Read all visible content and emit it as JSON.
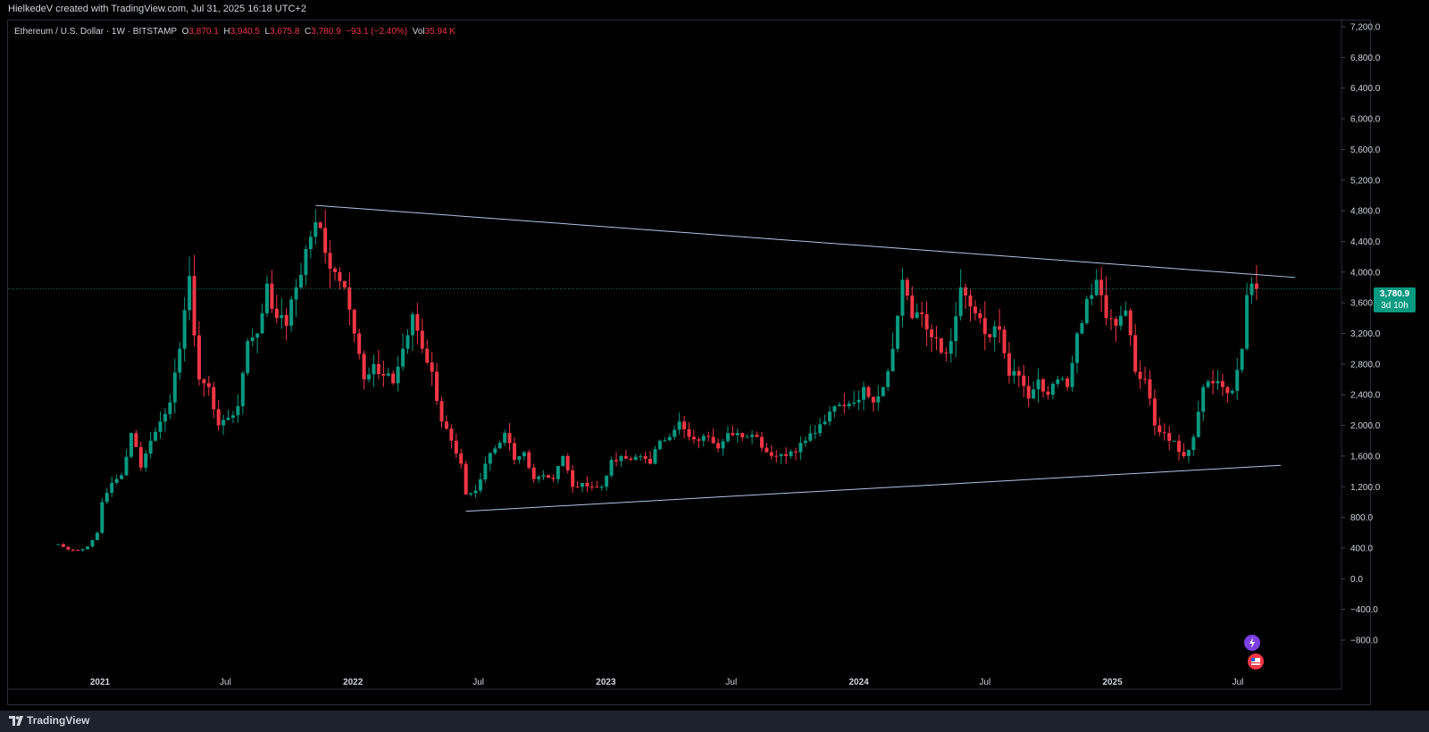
{
  "header": {
    "attribution": "HielkedeV created with TradingView.com, Jul 31, 2025 16:18 UTC+2"
  },
  "legend": {
    "symbol": "Ethereum / U.S. Dollar · 1W · BITSTAMP",
    "o_label": "O",
    "o_value": "3,870.1",
    "h_label": "H",
    "h_value": "3,940.5",
    "l_label": "L",
    "l_value": "3,675.8",
    "c_label": "C",
    "c_value": "3,780.9",
    "change": "−93.1 (−2.40%)",
    "vol_label": "Vol",
    "vol_value": "35.94 K"
  },
  "price_tag": {
    "price": "3,780.9",
    "countdown": "3d 10h"
  },
  "footer": {
    "brand": "TradingView"
  },
  "colors": {
    "up": "#089981",
    "down": "#f23645",
    "trendline": "#b3c6e6",
    "background": "#000000",
    "axis_text": "#d1d4dc"
  },
  "chart_data": {
    "type": "candlestick",
    "symbol": "ETHUSD",
    "timeframe": "1W",
    "y_axis": {
      "range": [
        -1000,
        7300
      ],
      "ticks": [
        "7,200.0",
        "6,800.0",
        "6,400.0",
        "6,000.0",
        "5,600.0",
        "5,200.0",
        "4,800.0",
        "4,400.0",
        "4,000.0",
        "3,600.0",
        "3,200.0",
        "2,800.0",
        "2,400.0",
        "2,000.0",
        "1,600.0",
        "1,200.0",
        "800.0",
        "400.0",
        "0.0",
        "−400.0",
        "−800.0"
      ]
    },
    "x_axis": {
      "ticks": [
        {
          "label": "2021",
          "date": "2021-01-01"
        },
        {
          "label": "Jul",
          "date": "2021-07-01"
        },
        {
          "label": "2022",
          "date": "2022-01-01"
        },
        {
          "label": "Jul",
          "date": "2022-07-01"
        },
        {
          "label": "2023",
          "date": "2023-01-01"
        },
        {
          "label": "Jul",
          "date": "2023-07-01"
        },
        {
          "label": "2024",
          "date": "2024-01-01"
        },
        {
          "label": "Jul",
          "date": "2024-07-01"
        },
        {
          "label": "2025",
          "date": "2025-01-01"
        },
        {
          "label": "Jul",
          "date": "2025-07-01"
        }
      ]
    },
    "last_price": 3780.9,
    "trendlines": [
      {
        "from": {
          "date": "2021-11-08",
          "value": 4870
        },
        "to": {
          "date": "2025-09-22",
          "value": 3930
        }
      },
      {
        "from": {
          "date": "2022-06-13",
          "value": 880
        },
        "to": {
          "date": "2025-09-01",
          "value": 1480
        }
      }
    ],
    "closes": [
      {
        "date": "2020-11-02",
        "value": 450
      },
      {
        "date": "2020-11-16",
        "value": 380
      },
      {
        "date": "2020-11-30",
        "value": 370
      },
      {
        "date": "2020-12-14",
        "value": 420
      },
      {
        "date": "2020-12-28",
        "value": 600
      },
      {
        "date": "2021-01-04",
        "value": 1000
      },
      {
        "date": "2021-01-18",
        "value": 1250
      },
      {
        "date": "2021-02-01",
        "value": 1350
      },
      {
        "date": "2021-02-15",
        "value": 1900
      },
      {
        "date": "2021-03-01",
        "value": 1450
      },
      {
        "date": "2021-03-15",
        "value": 1800
      },
      {
        "date": "2021-03-29",
        "value": 2050
      },
      {
        "date": "2021-04-12",
        "value": 2300
      },
      {
        "date": "2021-04-26",
        "value": 3000
      },
      {
        "date": "2021-05-10",
        "value": 3950
      },
      {
        "date": "2021-05-24",
        "value": 2600
      },
      {
        "date": "2021-06-07",
        "value": 2500
      },
      {
        "date": "2021-06-21",
        "value": 2000
      },
      {
        "date": "2021-07-05",
        "value": 2100
      },
      {
        "date": "2021-07-19",
        "value": 2250
      },
      {
        "date": "2021-08-02",
        "value": 3100
      },
      {
        "date": "2021-08-16",
        "value": 3200
      },
      {
        "date": "2021-08-30",
        "value": 3850
      },
      {
        "date": "2021-09-13",
        "value": 3400
      },
      {
        "date": "2021-09-27",
        "value": 3300
      },
      {
        "date": "2021-10-11",
        "value": 3800
      },
      {
        "date": "2021-10-25",
        "value": 4300
      },
      {
        "date": "2021-11-08",
        "value": 4650
      },
      {
        "date": "2021-11-22",
        "value": 4250
      },
      {
        "date": "2021-12-06",
        "value": 4000
      },
      {
        "date": "2021-12-20",
        "value": 3800
      },
      {
        "date": "2022-01-03",
        "value": 3200
      },
      {
        "date": "2022-01-17",
        "value": 2600
      },
      {
        "date": "2022-01-31",
        "value": 2800
      },
      {
        "date": "2022-02-14",
        "value": 2650
      },
      {
        "date": "2022-02-28",
        "value": 2550
      },
      {
        "date": "2022-03-14",
        "value": 3000
      },
      {
        "date": "2022-03-28",
        "value": 3450
      },
      {
        "date": "2022-04-11",
        "value": 3000
      },
      {
        "date": "2022-04-25",
        "value": 2700
      },
      {
        "date": "2022-05-09",
        "value": 2050
      },
      {
        "date": "2022-05-23",
        "value": 1800
      },
      {
        "date": "2022-06-06",
        "value": 1500
      },
      {
        "date": "2022-06-13",
        "value": 1100
      },
      {
        "date": "2022-06-27",
        "value": 1150
      },
      {
        "date": "2022-07-11",
        "value": 1500
      },
      {
        "date": "2022-07-25",
        "value": 1700
      },
      {
        "date": "2022-08-08",
        "value": 1900
      },
      {
        "date": "2022-08-22",
        "value": 1550
      },
      {
        "date": "2022-09-05",
        "value": 1650
      },
      {
        "date": "2022-09-19",
        "value": 1300
      },
      {
        "date": "2022-10-03",
        "value": 1350
      },
      {
        "date": "2022-10-17",
        "value": 1300
      },
      {
        "date": "2022-10-31",
        "value": 1600
      },
      {
        "date": "2022-11-14",
        "value": 1200
      },
      {
        "date": "2022-11-28",
        "value": 1250
      },
      {
        "date": "2022-12-12",
        "value": 1200
      },
      {
        "date": "2022-12-26",
        "value": 1200
      },
      {
        "date": "2023-01-09",
        "value": 1550
      },
      {
        "date": "2023-01-23",
        "value": 1600
      },
      {
        "date": "2023-02-06",
        "value": 1550
      },
      {
        "date": "2023-02-20",
        "value": 1600
      },
      {
        "date": "2023-03-06",
        "value": 1500
      },
      {
        "date": "2023-03-20",
        "value": 1800
      },
      {
        "date": "2023-04-03",
        "value": 1850
      },
      {
        "date": "2023-04-17",
        "value": 2050
      },
      {
        "date": "2023-05-01",
        "value": 1850
      },
      {
        "date": "2023-05-15",
        "value": 1800
      },
      {
        "date": "2023-05-29",
        "value": 1850
      },
      {
        "date": "2023-06-12",
        "value": 1700
      },
      {
        "date": "2023-06-26",
        "value": 1900
      },
      {
        "date": "2023-07-10",
        "value": 1900
      },
      {
        "date": "2023-07-24",
        "value": 1850
      },
      {
        "date": "2023-08-07",
        "value": 1850
      },
      {
        "date": "2023-08-21",
        "value": 1650
      },
      {
        "date": "2023-09-04",
        "value": 1600
      },
      {
        "date": "2023-09-18",
        "value": 1600
      },
      {
        "date": "2023-10-02",
        "value": 1650
      },
      {
        "date": "2023-10-16",
        "value": 1800
      },
      {
        "date": "2023-10-30",
        "value": 1900
      },
      {
        "date": "2023-11-13",
        "value": 2050
      },
      {
        "date": "2023-11-27",
        "value": 2250
      },
      {
        "date": "2023-12-11",
        "value": 2250
      },
      {
        "date": "2023-12-25",
        "value": 2300
      },
      {
        "date": "2024-01-08",
        "value": 2500
      },
      {
        "date": "2024-01-22",
        "value": 2300
      },
      {
        "date": "2024-02-05",
        "value": 2500
      },
      {
        "date": "2024-02-19",
        "value": 3000
      },
      {
        "date": "2024-03-04",
        "value": 3900
      },
      {
        "date": "2024-03-18",
        "value": 3400
      },
      {
        "date": "2024-04-01",
        "value": 3450
      },
      {
        "date": "2024-04-15",
        "value": 3150
      },
      {
        "date": "2024-04-29",
        "value": 2950
      },
      {
        "date": "2024-05-13",
        "value": 3100
      },
      {
        "date": "2024-05-27",
        "value": 3800
      },
      {
        "date": "2024-06-10",
        "value": 3550
      },
      {
        "date": "2024-06-24",
        "value": 3400
      },
      {
        "date": "2024-07-08",
        "value": 3150
      },
      {
        "date": "2024-07-22",
        "value": 3250
      },
      {
        "date": "2024-08-05",
        "value": 2650
      },
      {
        "date": "2024-08-19",
        "value": 2650
      },
      {
        "date": "2024-09-02",
        "value": 2350
      },
      {
        "date": "2024-09-16",
        "value": 2600
      },
      {
        "date": "2024-09-30",
        "value": 2400
      },
      {
        "date": "2024-10-14",
        "value": 2600
      },
      {
        "date": "2024-10-28",
        "value": 2500
      },
      {
        "date": "2024-11-11",
        "value": 3200
      },
      {
        "date": "2024-11-25",
        "value": 3650
      },
      {
        "date": "2024-12-09",
        "value": 3900
      },
      {
        "date": "2024-12-23",
        "value": 3400
      },
      {
        "date": "2025-01-06",
        "value": 3300
      },
      {
        "date": "2025-01-20",
        "value": 3500
      },
      {
        "date": "2025-02-03",
        "value": 2700
      },
      {
        "date": "2025-02-17",
        "value": 2600
      },
      {
        "date": "2025-03-03",
        "value": 2000
      },
      {
        "date": "2025-03-17",
        "value": 1900
      },
      {
        "date": "2025-03-31",
        "value": 1800
      },
      {
        "date": "2025-04-14",
        "value": 1600
      },
      {
        "date": "2025-04-28",
        "value": 1850
      },
      {
        "date": "2025-05-12",
        "value": 2500
      },
      {
        "date": "2025-05-26",
        "value": 2550
      },
      {
        "date": "2025-06-09",
        "value": 2500
      },
      {
        "date": "2025-06-23",
        "value": 2450
      },
      {
        "date": "2025-07-07",
        "value": 3000
      },
      {
        "date": "2025-07-14",
        "value": 3700
      },
      {
        "date": "2025-07-21",
        "value": 3850
      },
      {
        "date": "2025-07-28",
        "value": 3780.9
      }
    ]
  }
}
